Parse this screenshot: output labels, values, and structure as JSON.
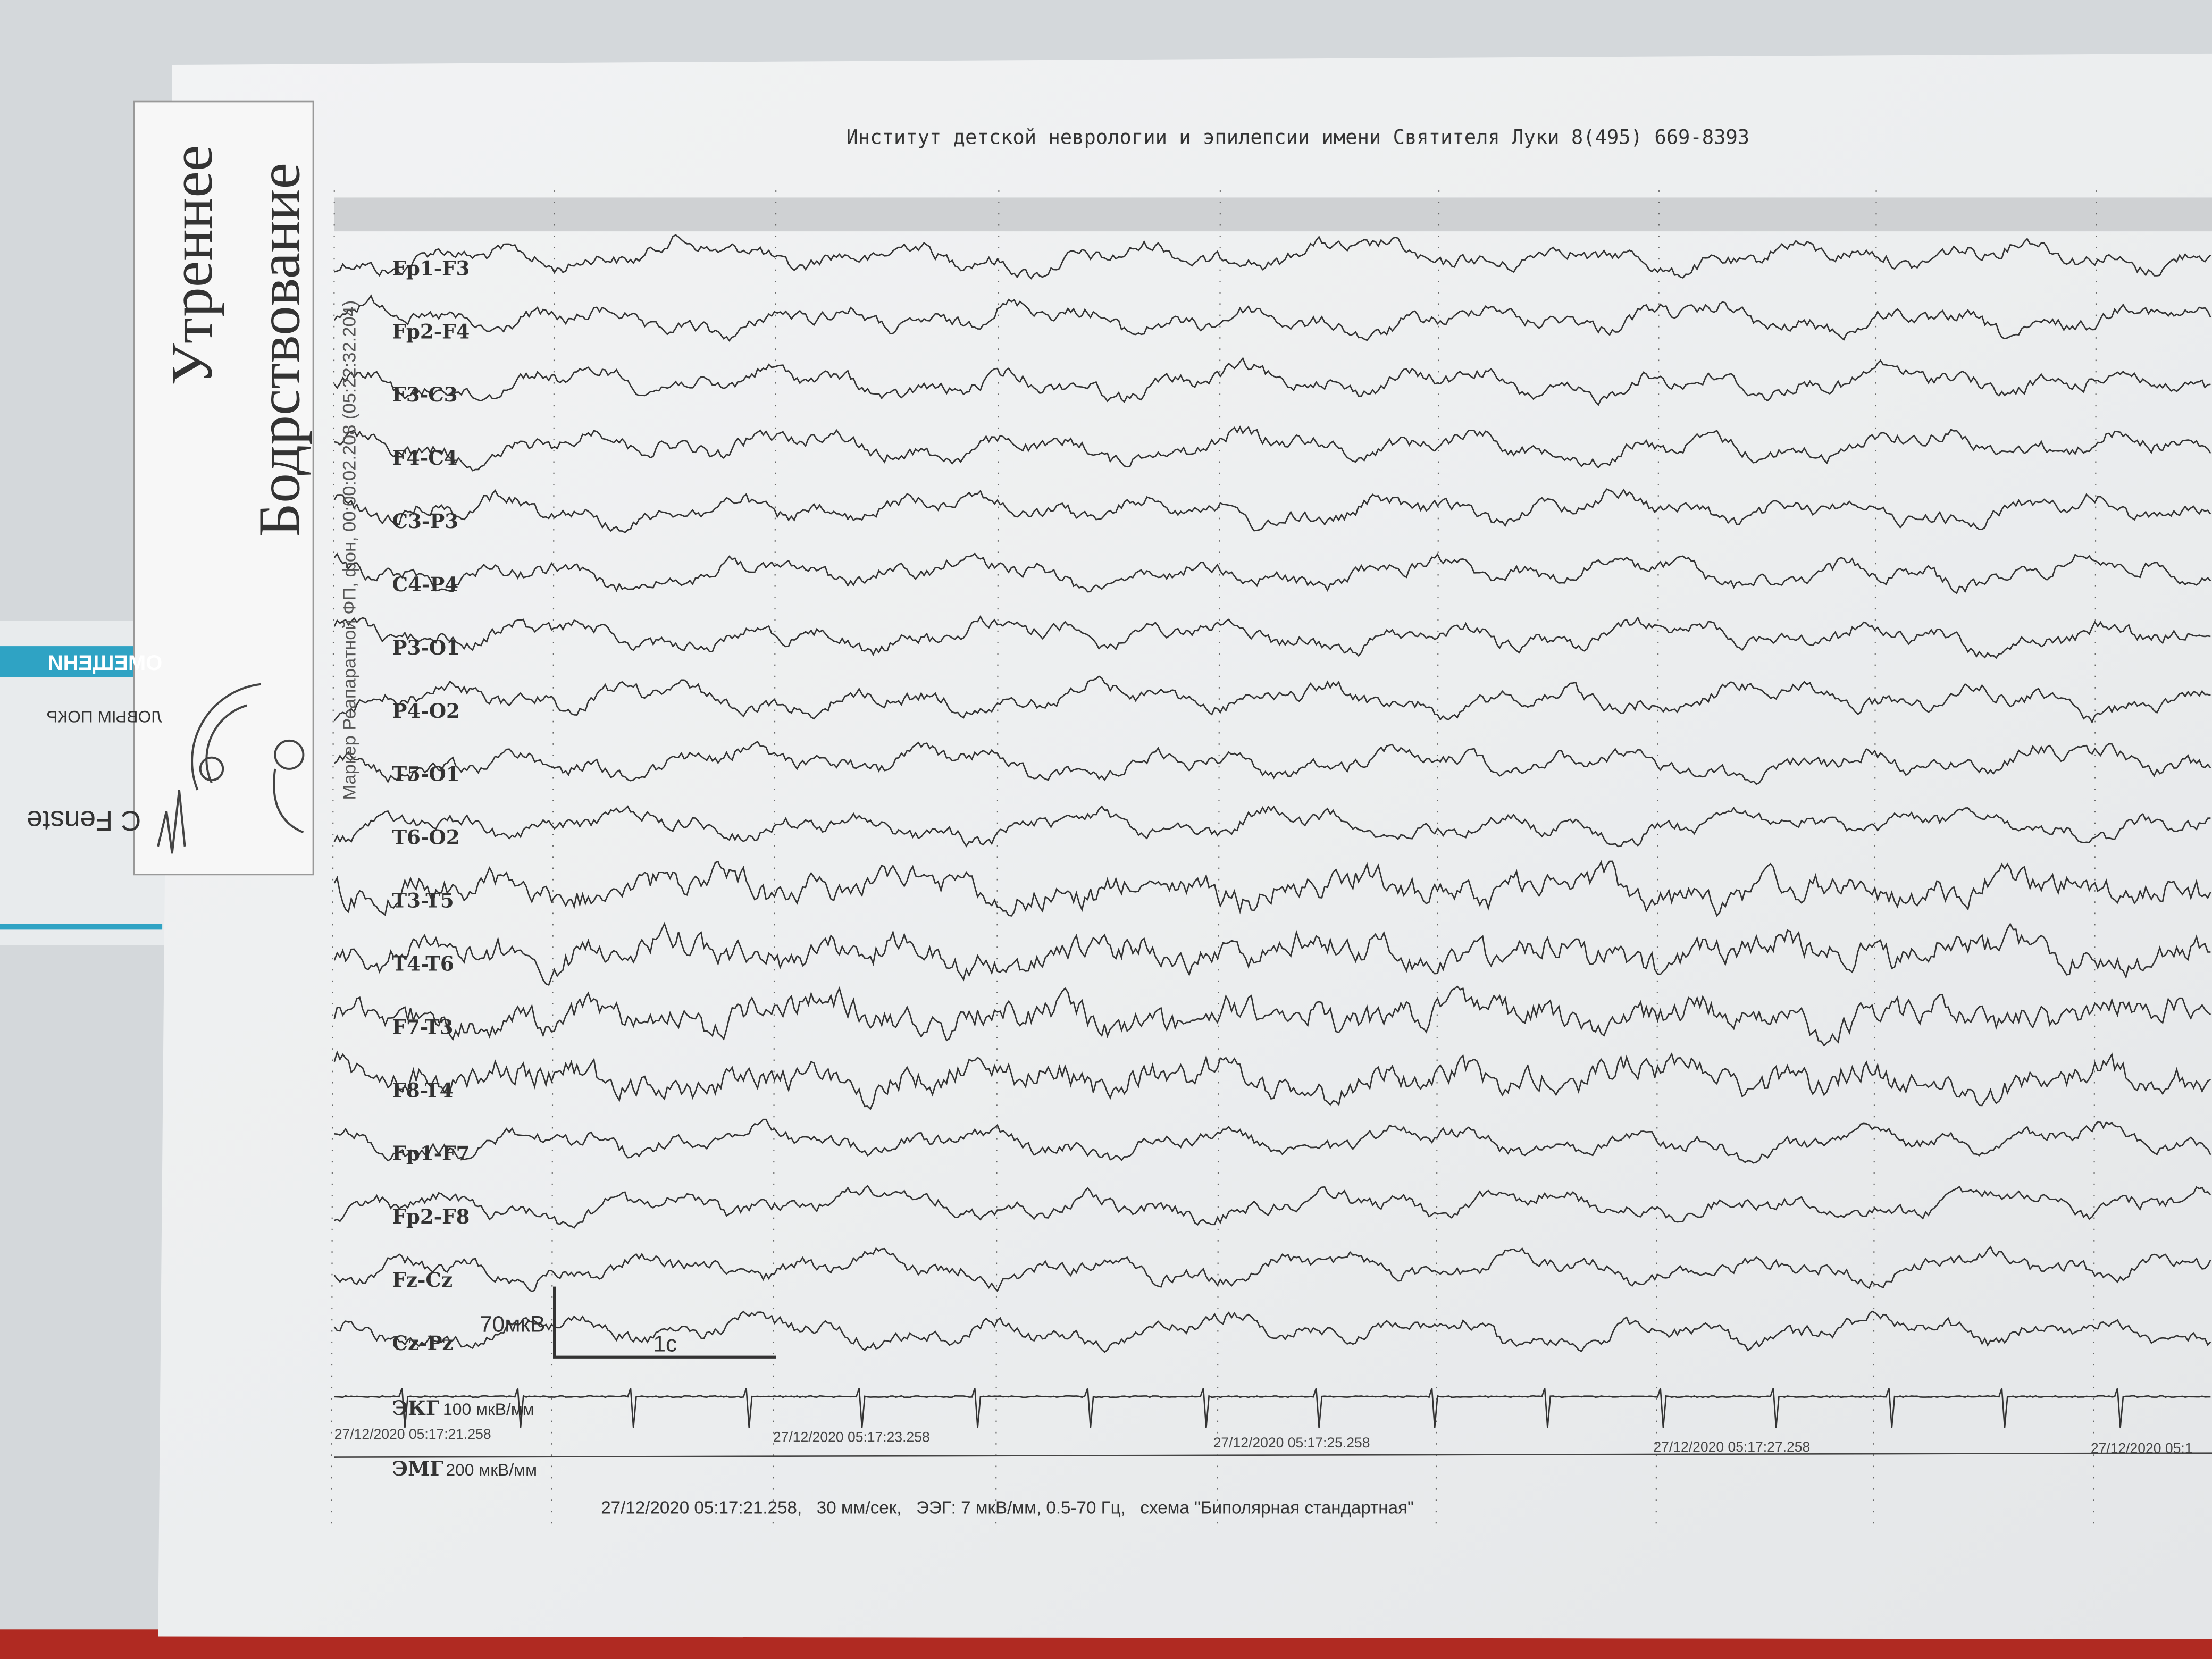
{
  "header": {
    "title": "Институт детской неврологии и эпилепсии имени Святителя Луки 8(495) 669-8393"
  },
  "side_label": {
    "line1": "Утреннее",
    "line2": "Бодрствование"
  },
  "marker": "Маркер Реапаратной ФП, фон, 00:00:02.208 (05:22:32.204)",
  "channels": [
    "Fp1-F3",
    "Fp2-F4",
    "F3-C3",
    "F4-C4",
    "C3-P3",
    "C4-P4",
    "P3-O1",
    "P4-O2",
    "T5-O1",
    "T6-O2",
    "T3-T5",
    "T4-T6",
    "F7-T3",
    "F8-T4",
    "Fp1-F7",
    "Fp2-F8",
    "Fz-Cz",
    "Cz-Pz"
  ],
  "calibration": {
    "amplitude": "70мкВ",
    "time": "1с"
  },
  "ecg": {
    "label": "ЭКГ",
    "scale": "100 мкВ/мм"
  },
  "emg": {
    "label": "ЭМГ",
    "scale": "200 мкВ/мм"
  },
  "timestamps": [
    "27/12/2020 05:17:21.258",
    "27/12/2020 05:17:23.258",
    "27/12/2020 05:17:25.258",
    "27/12/2020 05:17:27.258",
    "27/12/2020 05:1"
  ],
  "footer": "27/12/2020 05:17:21.258,   30 мм/сек,   ЭЭГ: 7 мкВ/мм, 0.5-70 Гц,   схема \"Биполярная стандартная\"",
  "background_texts": [
    "ОМЕЩЕНИ",
    "ЛОВЫМ ПОКР",
    "C Fenste"
  ]
}
